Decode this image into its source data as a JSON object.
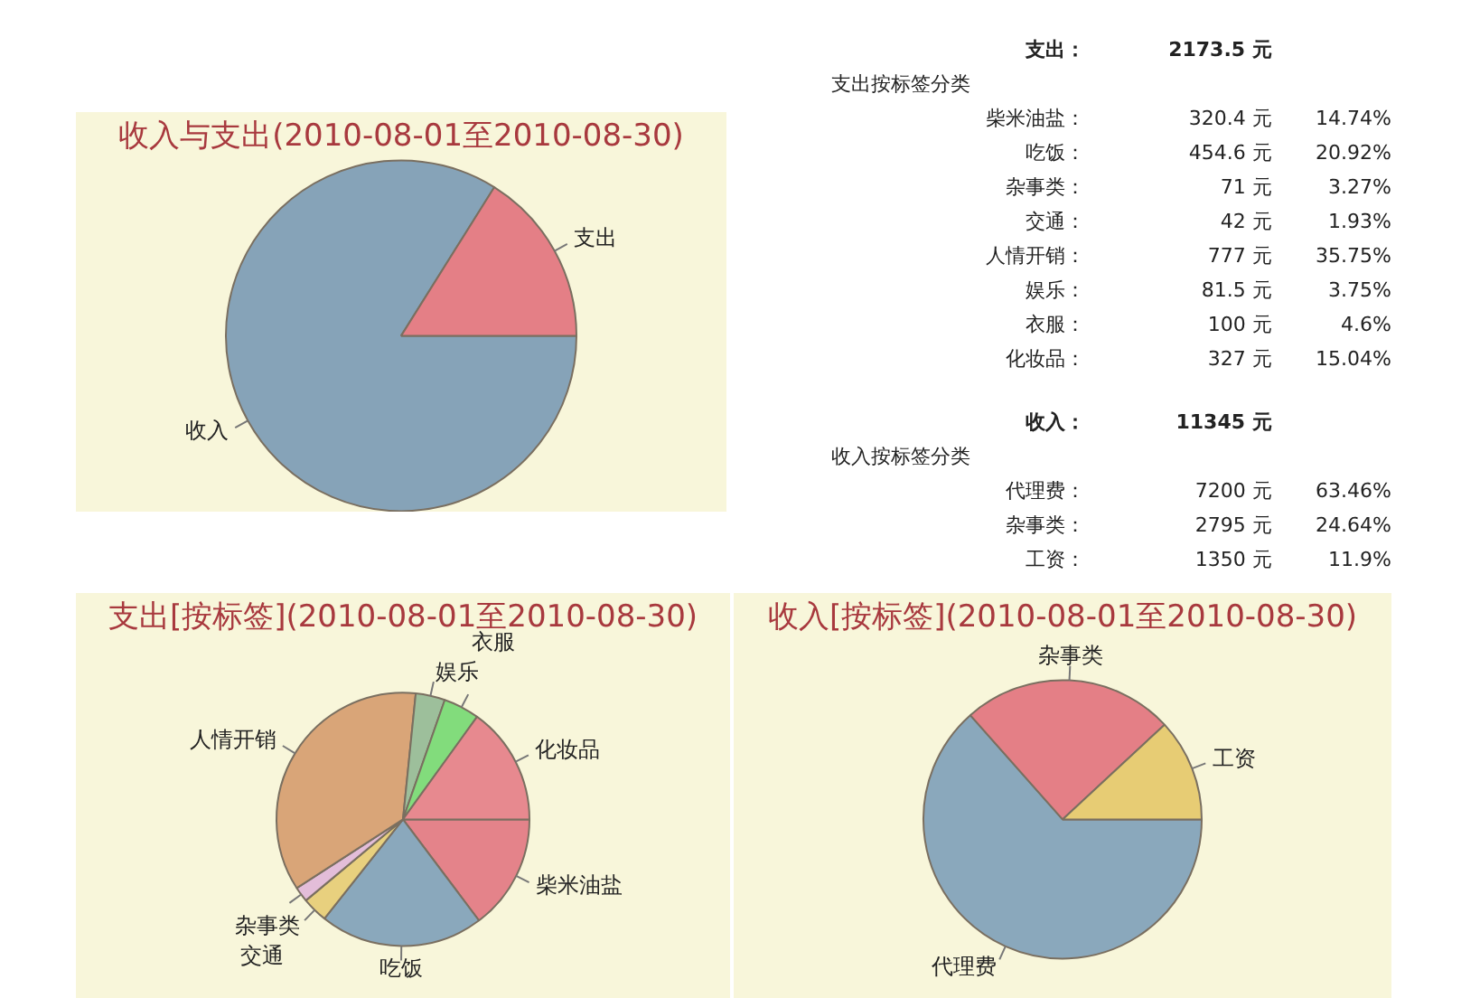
{
  "chart_data": [
    {
      "type": "pie",
      "title": "收入与支出(2010-08-01至2010-08-30)",
      "categories": [
        "收入",
        "支出"
      ],
      "values": [
        83.92,
        16.08
      ],
      "colors": [
        "#86a3b8",
        "#e47f86"
      ]
    },
    {
      "type": "other",
      "annotations": [
        "支出：",
        "2173.5 元",
        "支出按标签分类",
        "柴米油盐：",
        "320.4 元",
        "14.74%",
        "吃饭：",
        "454.6 元",
        "20.92%",
        "杂事类：",
        "71 元",
        "3.27%",
        "交通：",
        "42 元",
        "1.93%",
        "人情开销：",
        "777 元",
        "35.75%",
        "娱乐：",
        "81.5 元",
        "3.75%",
        "衣服：",
        "100 元",
        "4.6%",
        "化妆品：",
        "327 元",
        "15.04%",
        "收入：",
        "11345 元",
        "收入按标签分类",
        "代理费：",
        "7200 元",
        "63.46%",
        "杂事类：",
        "2795 元",
        "24.64%",
        "工资：",
        "1350 元",
        "11.9%"
      ]
    },
    {
      "type": "pie",
      "title": "支出[按标签](2010-08-01至2010-08-30)",
      "categories": [
        "柴米油盐",
        "吃饭",
        "杂事类",
        "交通",
        "人情开销",
        "娱乐",
        "衣服",
        "化妆品"
      ],
      "values": [
        14.74,
        20.92,
        3.27,
        1.93,
        35.75,
        3.75,
        4.6,
        15.04
      ],
      "colors": [
        "#e4838a",
        "#8aa8bc",
        "#e8d07e",
        "#e3bdd9",
        "#d9a578",
        "#9dbf9b",
        "#82dc7c",
        "#e7898f"
      ]
    },
    {
      "type": "pie",
      "title": "收入[按标签](2010-08-01至2010-08-30)",
      "categories": [
        "代理费",
        "杂事类",
        "工资"
      ],
      "values": [
        63.46,
        24.64,
        11.9
      ],
      "colors": [
        "#8aa8bc",
        "#e47f86",
        "#e7cc74"
      ]
    }
  ]
}
